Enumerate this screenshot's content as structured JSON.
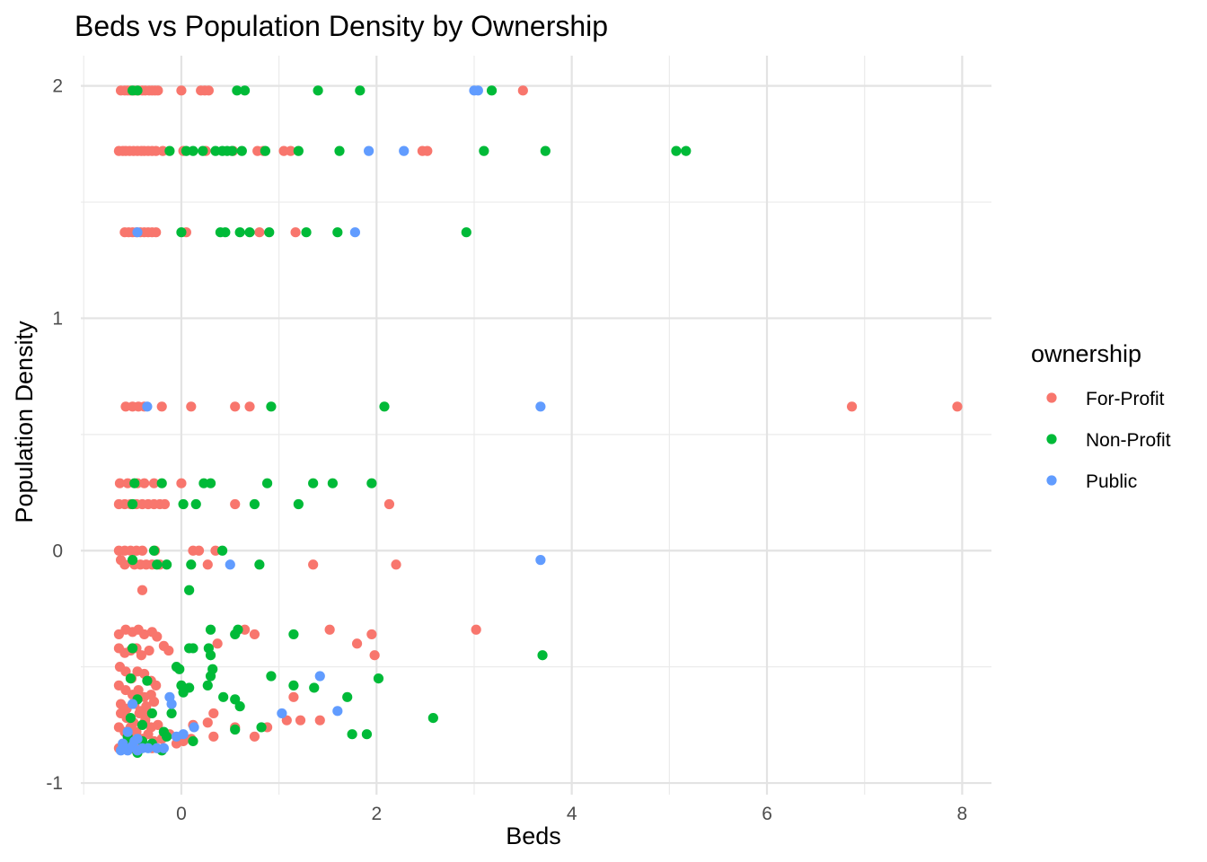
{
  "chart_data": {
    "type": "scatter",
    "title": "Beds vs Population Density by Ownership",
    "xlabel": "Beds",
    "ylabel": "Population Density",
    "xlim": [
      -1.03,
      8.3
    ],
    "ylim": [
      -1.05,
      2.13
    ],
    "xticks": [
      0,
      2,
      4,
      6,
      8
    ],
    "xtick_labels": [
      "0",
      "2",
      "4",
      "6",
      "8"
    ],
    "yticks": [
      -1,
      0,
      1,
      2
    ],
    "ytick_labels": [
      "-1",
      "0",
      "1",
      "2"
    ],
    "grid": true,
    "legend": {
      "title": "ownership",
      "position": "right"
    },
    "series": [
      {
        "name": "For-Profit",
        "color": "#F8766D",
        "points": [
          [
            -0.62,
            1.98
          ],
          [
            -0.58,
            1.98
          ],
          [
            -0.55,
            1.98
          ],
          [
            -0.52,
            1.98
          ],
          [
            -0.48,
            1.98
          ],
          [
            -0.44,
            1.98
          ],
          [
            -0.4,
            1.98
          ],
          [
            -0.37,
            1.98
          ],
          [
            -0.33,
            1.98
          ],
          [
            -0.3,
            1.98
          ],
          [
            -0.27,
            1.98
          ],
          [
            -0.24,
            1.98
          ],
          [
            0.0,
            1.98
          ],
          [
            0.2,
            1.98
          ],
          [
            0.24,
            1.98
          ],
          [
            0.28,
            1.98
          ],
          [
            3.5,
            1.98
          ],
          [
            -0.64,
            1.72
          ],
          [
            -0.6,
            1.72
          ],
          [
            -0.57,
            1.72
          ],
          [
            -0.53,
            1.72
          ],
          [
            -0.49,
            1.72
          ],
          [
            -0.45,
            1.72
          ],
          [
            -0.41,
            1.72
          ],
          [
            -0.38,
            1.72
          ],
          [
            -0.34,
            1.72
          ],
          [
            -0.3,
            1.72
          ],
          [
            -0.26,
            1.72
          ],
          [
            -0.19,
            1.72
          ],
          [
            0.02,
            1.72
          ],
          [
            0.25,
            1.72
          ],
          [
            0.53,
            1.72
          ],
          [
            0.78,
            1.72
          ],
          [
            0.84,
            1.72
          ],
          [
            1.05,
            1.72
          ],
          [
            1.12,
            1.72
          ],
          [
            2.47,
            1.72
          ],
          [
            2.52,
            1.72
          ],
          [
            -0.58,
            1.37
          ],
          [
            -0.54,
            1.37
          ],
          [
            -0.5,
            1.37
          ],
          [
            -0.46,
            1.37
          ],
          [
            -0.42,
            1.37
          ],
          [
            -0.38,
            1.37
          ],
          [
            -0.34,
            1.37
          ],
          [
            -0.3,
            1.37
          ],
          [
            -0.26,
            1.37
          ],
          [
            0.05,
            1.37
          ],
          [
            0.8,
            1.37
          ],
          [
            1.17,
            1.37
          ],
          [
            -0.57,
            0.62
          ],
          [
            -0.5,
            0.62
          ],
          [
            -0.44,
            0.62
          ],
          [
            -0.38,
            0.62
          ],
          [
            -0.2,
            0.62
          ],
          [
            0.1,
            0.62
          ],
          [
            0.55,
            0.62
          ],
          [
            0.7,
            0.62
          ],
          [
            6.87,
            0.62
          ],
          [
            7.95,
            0.62
          ],
          [
            -0.63,
            0.29
          ],
          [
            -0.55,
            0.29
          ],
          [
            -0.45,
            0.29
          ],
          [
            -0.38,
            0.29
          ],
          [
            -0.28,
            0.29
          ],
          [
            0.0,
            0.29
          ],
          [
            -0.64,
            0.2
          ],
          [
            -0.58,
            0.2
          ],
          [
            -0.52,
            0.2
          ],
          [
            -0.46,
            0.2
          ],
          [
            -0.4,
            0.2
          ],
          [
            -0.34,
            0.2
          ],
          [
            -0.28,
            0.2
          ],
          [
            -0.22,
            0.2
          ],
          [
            -0.17,
            0.2
          ],
          [
            0.55,
            0.2
          ],
          [
            2.13,
            0.2
          ],
          [
            -0.64,
            0.0
          ],
          [
            -0.58,
            0.0
          ],
          [
            -0.52,
            0.0
          ],
          [
            -0.46,
            0.0
          ],
          [
            -0.4,
            0.0
          ],
          [
            -0.27,
            0.0
          ],
          [
            0.12,
            0.0
          ],
          [
            0.18,
            0.0
          ],
          [
            0.35,
            0.0
          ],
          [
            -0.62,
            -0.04
          ],
          [
            -0.58,
            -0.06
          ],
          [
            -0.48,
            -0.06
          ],
          [
            -0.42,
            -0.06
          ],
          [
            -0.36,
            -0.06
          ],
          [
            -0.3,
            -0.06
          ],
          [
            -0.22,
            -0.06
          ],
          [
            0.27,
            -0.06
          ],
          [
            1.35,
            -0.06
          ],
          [
            2.2,
            -0.06
          ],
          [
            -0.4,
            -0.17
          ],
          [
            -0.64,
            -0.36
          ],
          [
            -0.57,
            -0.34
          ],
          [
            -0.5,
            -0.35
          ],
          [
            -0.44,
            -0.34
          ],
          [
            -0.38,
            -0.36
          ],
          [
            -0.3,
            -0.35
          ],
          [
            -0.25,
            -0.37
          ],
          [
            0.65,
            -0.34
          ],
          [
            0.75,
            -0.36
          ],
          [
            1.52,
            -0.34
          ],
          [
            1.95,
            -0.36
          ],
          [
            3.02,
            -0.34
          ],
          [
            -0.64,
            -0.42
          ],
          [
            -0.58,
            -0.44
          ],
          [
            -0.52,
            -0.43
          ],
          [
            -0.46,
            -0.42
          ],
          [
            -0.41,
            -0.45
          ],
          [
            -0.33,
            -0.43
          ],
          [
            -0.18,
            -0.41
          ],
          [
            -0.13,
            -0.43
          ],
          [
            0.37,
            -0.4
          ],
          [
            1.8,
            -0.4
          ],
          [
            1.98,
            -0.45
          ],
          [
            -0.63,
            -0.5
          ],
          [
            -0.57,
            -0.52
          ],
          [
            -0.51,
            -0.55
          ],
          [
            -0.45,
            -0.52
          ],
          [
            -0.38,
            -0.53
          ],
          [
            -0.31,
            -0.56
          ],
          [
            -0.26,
            -0.58
          ],
          [
            -0.64,
            -0.58
          ],
          [
            -0.57,
            -0.6
          ],
          [
            -0.5,
            -0.62
          ],
          [
            -0.44,
            -0.6
          ],
          [
            -0.38,
            -0.63
          ],
          [
            -0.31,
            -0.62
          ],
          [
            -0.28,
            -0.65
          ],
          [
            -0.36,
            -0.67
          ],
          [
            -0.62,
            -0.7
          ],
          [
            -0.56,
            -0.72
          ],
          [
            -0.49,
            -0.74
          ],
          [
            -0.43,
            -0.7
          ],
          [
            -0.37,
            -0.73
          ],
          [
            -0.31,
            -0.76
          ],
          [
            -0.24,
            -0.75
          ],
          [
            0.33,
            -0.7
          ],
          [
            1.15,
            -0.63
          ],
          [
            -0.64,
            -0.76
          ],
          [
            -0.58,
            -0.78
          ],
          [
            -0.52,
            -0.8
          ],
          [
            -0.46,
            -0.78
          ],
          [
            -0.4,
            -0.81
          ],
          [
            -0.34,
            -0.79
          ],
          [
            -0.28,
            -0.82
          ],
          [
            -0.2,
            -0.81
          ],
          [
            -0.12,
            -0.79
          ],
          [
            0.02,
            -0.82
          ],
          [
            0.1,
            -0.81
          ],
          [
            0.33,
            -0.8
          ],
          [
            0.55,
            -0.76
          ],
          [
            0.75,
            -0.8
          ],
          [
            0.88,
            -0.76
          ],
          [
            1.08,
            -0.73
          ],
          [
            1.22,
            -0.73
          ],
          [
            1.42,
            -0.73
          ],
          [
            0.12,
            -0.75
          ],
          [
            0.27,
            -0.74
          ],
          [
            -0.64,
            -0.85
          ],
          [
            -0.58,
            -0.84
          ],
          [
            -0.52,
            -0.83
          ],
          [
            -0.46,
            -0.86
          ],
          [
            -0.4,
            -0.84
          ],
          [
            -0.3,
            -0.85
          ],
          [
            -0.05,
            -0.83
          ],
          [
            -0.62,
            -0.66
          ],
          [
            -0.56,
            -0.68
          ],
          [
            -0.48,
            -0.66
          ],
          [
            -0.42,
            -0.69
          ],
          [
            -0.36,
            -0.71
          ],
          [
            -0.52,
            -0.76
          ]
        ]
      },
      {
        "name": "Non-Profit",
        "color": "#00BA38",
        "points": [
          [
            -0.5,
            1.98
          ],
          [
            -0.45,
            1.98
          ],
          [
            0.57,
            1.98
          ],
          [
            0.65,
            1.98
          ],
          [
            1.4,
            1.98
          ],
          [
            1.83,
            1.98
          ],
          [
            3.18,
            1.98
          ],
          [
            -0.12,
            1.72
          ],
          [
            0.05,
            1.72
          ],
          [
            0.12,
            1.72
          ],
          [
            0.22,
            1.72
          ],
          [
            0.35,
            1.72
          ],
          [
            0.42,
            1.72
          ],
          [
            0.47,
            1.72
          ],
          [
            0.52,
            1.72
          ],
          [
            0.62,
            1.72
          ],
          [
            0.86,
            1.72
          ],
          [
            1.2,
            1.72
          ],
          [
            1.62,
            1.72
          ],
          [
            3.1,
            1.72
          ],
          [
            3.73,
            1.72
          ],
          [
            5.07,
            1.72
          ],
          [
            5.17,
            1.72
          ],
          [
            0.0,
            1.37
          ],
          [
            0.4,
            1.37
          ],
          [
            0.45,
            1.37
          ],
          [
            0.6,
            1.37
          ],
          [
            0.7,
            1.37
          ],
          [
            0.9,
            1.37
          ],
          [
            1.28,
            1.37
          ],
          [
            1.6,
            1.37
          ],
          [
            2.92,
            1.37
          ],
          [
            0.92,
            0.62
          ],
          [
            2.08,
            0.62
          ],
          [
            -0.48,
            0.29
          ],
          [
            -0.2,
            0.29
          ],
          [
            0.23,
            0.29
          ],
          [
            0.3,
            0.29
          ],
          [
            0.88,
            0.29
          ],
          [
            1.35,
            0.29
          ],
          [
            1.55,
            0.29
          ],
          [
            1.95,
            0.29
          ],
          [
            -0.5,
            0.2
          ],
          [
            0.02,
            0.2
          ],
          [
            0.15,
            0.2
          ],
          [
            0.75,
            0.2
          ],
          [
            1.2,
            0.2
          ],
          [
            -0.28,
            0.0
          ],
          [
            0.42,
            0.0
          ],
          [
            -0.5,
            -0.04
          ],
          [
            -0.25,
            -0.06
          ],
          [
            -0.15,
            -0.06
          ],
          [
            0.1,
            -0.06
          ],
          [
            0.8,
            -0.06
          ],
          [
            0.08,
            -0.17
          ],
          [
            0.3,
            -0.34
          ],
          [
            0.58,
            -0.34
          ],
          [
            0.55,
            -0.36
          ],
          [
            1.15,
            -0.36
          ],
          [
            3.7,
            -0.45
          ],
          [
            -0.5,
            -0.42
          ],
          [
            0.08,
            -0.42
          ],
          [
            0.12,
            -0.42
          ],
          [
            0.28,
            -0.42
          ],
          [
            0.3,
            -0.45
          ],
          [
            -0.05,
            -0.5
          ],
          [
            -0.02,
            -0.51
          ],
          [
            0.32,
            -0.51
          ],
          [
            0.3,
            -0.54
          ],
          [
            0.92,
            -0.54
          ],
          [
            2.02,
            -0.55
          ],
          [
            -0.52,
            -0.55
          ],
          [
            -0.35,
            -0.56
          ],
          [
            0.0,
            -0.58
          ],
          [
            0.08,
            -0.59
          ],
          [
            0.27,
            -0.58
          ],
          [
            1.15,
            -0.58
          ],
          [
            1.36,
            -0.59
          ],
          [
            -0.45,
            -0.64
          ],
          [
            0.02,
            -0.61
          ],
          [
            0.43,
            -0.63
          ],
          [
            0.55,
            -0.64
          ],
          [
            0.6,
            -0.67
          ],
          [
            1.7,
            -0.63
          ],
          [
            -0.3,
            -0.7
          ],
          [
            -0.1,
            -0.7
          ],
          [
            -0.52,
            -0.72
          ],
          [
            -0.4,
            -0.75
          ],
          [
            2.58,
            -0.72
          ],
          [
            -0.55,
            -0.8
          ],
          [
            -0.18,
            -0.78
          ],
          [
            -0.15,
            -0.8
          ],
          [
            0.55,
            -0.77
          ],
          [
            0.82,
            -0.76
          ],
          [
            1.75,
            -0.79
          ],
          [
            1.9,
            -0.79
          ],
          [
            -0.6,
            -0.85
          ],
          [
            -0.5,
            -0.83
          ],
          [
            -0.4,
            -0.82
          ],
          [
            -0.3,
            -0.83
          ],
          [
            0.12,
            -0.82
          ],
          [
            -0.2,
            -0.86
          ],
          [
            -0.45,
            -0.87
          ]
        ]
      },
      {
        "name": "Public",
        "color": "#619CFF",
        "points": [
          [
            3.0,
            1.98
          ],
          [
            3.04,
            1.98
          ],
          [
            1.92,
            1.72
          ],
          [
            2.28,
            1.72
          ],
          [
            -0.45,
            1.37
          ],
          [
            1.78,
            1.37
          ],
          [
            -0.35,
            0.62
          ],
          [
            3.68,
            0.62
          ],
          [
            0.5,
            -0.06
          ],
          [
            3.68,
            -0.04
          ],
          [
            1.42,
            -0.54
          ],
          [
            -0.12,
            -0.63
          ],
          [
            -0.1,
            -0.66
          ],
          [
            -0.5,
            -0.66
          ],
          [
            1.03,
            -0.7
          ],
          [
            1.6,
            -0.69
          ],
          [
            0.13,
            -0.76
          ],
          [
            -0.55,
            -0.78
          ],
          [
            -0.45,
            -0.81
          ],
          [
            -0.05,
            -0.8
          ],
          [
            0.02,
            -0.79
          ],
          [
            -0.62,
            -0.86
          ],
          [
            -0.58,
            -0.85
          ],
          [
            -0.55,
            -0.86
          ],
          [
            -0.5,
            -0.84
          ],
          [
            -0.45,
            -0.86
          ],
          [
            -0.4,
            -0.85
          ],
          [
            -0.34,
            -0.85
          ],
          [
            -0.25,
            -0.85
          ],
          [
            -0.18,
            -0.85
          ],
          [
            -0.6,
            -0.83
          ],
          [
            -0.48,
            -0.82
          ]
        ]
      }
    ]
  }
}
